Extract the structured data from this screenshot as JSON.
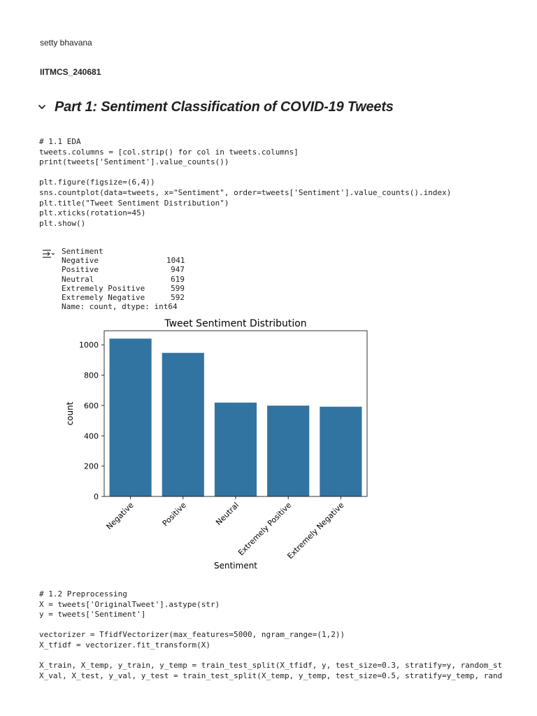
{
  "header": {
    "author": "setty bhavana",
    "roll_number": "IITMCS_240681"
  },
  "section": {
    "title": "Part 1: Sentiment Classification of COVID-19 Tweets",
    "collapse_icon": "chevron-down-icon"
  },
  "cells": [
    {
      "lines": [
        "# 1.1 EDA",
        "tweets.columns = [col.strip() for col in tweets.columns]",
        "print(tweets['Sentiment'].value_counts())",
        "",
        "plt.figure(figsize=(6,4))",
        "sns.countplot(data=tweets, x=\"Sentiment\", order=tweets['Sentiment'].value_counts().index)",
        "plt.title(\"Tweet Sentiment Distribution\")",
        "plt.xticks(rotation=45)",
        "plt.show()"
      ]
    },
    {
      "lines": [
        "# 1.2 Preprocessing",
        "X = tweets['OriginalTweet'].astype(str)",
        "y = tweets['Sentiment']",
        "",
        "vectorizer = TfidfVectorizer(max_features=5000, ngram_range=(1,2))",
        "X_tfidf = vectorizer.fit_transform(X)",
        "",
        "X_train, X_temp, y_train, y_temp = train_test_split(X_tfidf, y, test_size=0.3, stratify=y, random_st",
        "X_val, X_test, y_val, y_test = train_test_split(X_temp, y_temp, test_size=0.5, stratify=y_temp, rand"
      ]
    }
  ],
  "output": {
    "icon": "output-toggle-icon",
    "header": "Sentiment",
    "rows": [
      {
        "label": "Negative",
        "value": "1041"
      },
      {
        "label": "Positive",
        "value": "947"
      },
      {
        "label": "Neutral",
        "value": "619"
      },
      {
        "label": "Extremely Positive",
        "value": "599"
      },
      {
        "label": "Extremely Negative",
        "value": "592"
      }
    ],
    "footer": "Name: count, dtype: int64"
  },
  "chart_data": {
    "type": "bar",
    "title": "Tweet Sentiment Distribution",
    "xlabel": "Sentiment",
    "ylabel": "count",
    "categories": [
      "Negative",
      "Positive",
      "Neutral",
      "Extremely Positive",
      "Extremely Negative"
    ],
    "values": [
      1041,
      947,
      619,
      599,
      592
    ],
    "ylim": [
      0,
      1093
    ],
    "yticks": [
      0,
      200,
      400,
      600,
      800,
      1000
    ],
    "bar_color": "#3274a1",
    "grid": false,
    "xtick_rotation": 45
  }
}
